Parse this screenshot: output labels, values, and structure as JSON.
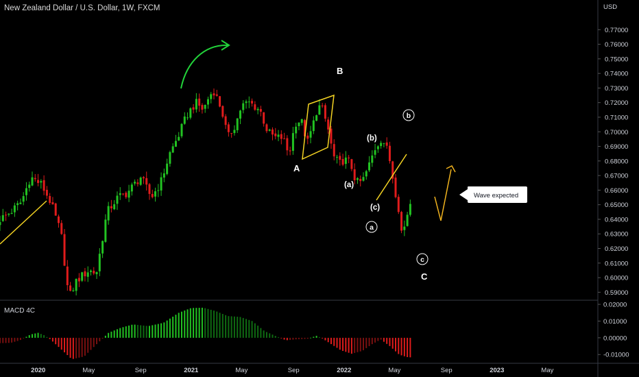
{
  "header": {
    "title": "New Zealand Dollar / U.S. Dollar, 1W, FXCM",
    "currency": "USD"
  },
  "colors": {
    "background": "#000000",
    "up": "#22c322",
    "down": "#e01c1c",
    "trendline": "#f5d423",
    "projection": "#f2b41e",
    "arrow": "#22d33a",
    "grid": "#1a1a1a",
    "separator": "#363a45"
  },
  "chart_data": [
    {
      "type": "candlestick",
      "title": "New Zealand Dollar / U.S. Dollar, 1W, FXCM",
      "ylabel": "USD",
      "ylim": [
        0.585,
        0.78
      ],
      "grid": false,
      "y_ticks": [
        "0.77000",
        "0.76000",
        "0.75000",
        "0.74000",
        "0.73000",
        "0.72000",
        "0.71000",
        "0.70000",
        "0.69000",
        "0.68000",
        "0.67000",
        "0.66000",
        "0.65000",
        "0.64000",
        "0.63000",
        "0.62000",
        "0.61000",
        "0.60000",
        "0.59000"
      ],
      "x_ticks": [
        {
          "label": "2020",
          "x": 2020.0
        },
        {
          "label": "May",
          "x": 2020.33
        },
        {
          "label": "Sep",
          "x": 2020.67
        },
        {
          "label": "2021",
          "x": 2021.0
        },
        {
          "label": "May",
          "x": 2021.33
        },
        {
          "label": "Sep",
          "x": 2021.67
        },
        {
          "label": "2022",
          "x": 2022.0
        },
        {
          "label": "May",
          "x": 2022.33
        },
        {
          "label": "Sep",
          "x": 2022.67
        },
        {
          "label": "2023",
          "x": 2023.0
        },
        {
          "label": "May",
          "x": 2023.33
        }
      ],
      "xlim": [
        2019.75,
        2023.66
      ],
      "keypoints": [
        {
          "x": 2019.75,
          "close": 0.64
        },
        {
          "x": 2019.82,
          "close": 0.645
        },
        {
          "x": 2019.89,
          "close": 0.652
        },
        {
          "x": 2019.95,
          "close": 0.669
        },
        {
          "x": 2020.02,
          "close": 0.664
        },
        {
          "x": 2020.08,
          "close": 0.652
        },
        {
          "x": 2020.15,
          "close": 0.63
        },
        {
          "x": 2020.2,
          "close": 0.586
        },
        {
          "x": 2020.25,
          "close": 0.598
        },
        {
          "x": 2020.33,
          "close": 0.605
        },
        {
          "x": 2020.38,
          "close": 0.603
        },
        {
          "x": 2020.45,
          "close": 0.645
        },
        {
          "x": 2020.52,
          "close": 0.655
        },
        {
          "x": 2020.58,
          "close": 0.658
        },
        {
          "x": 2020.67,
          "close": 0.669
        },
        {
          "x": 2020.74,
          "close": 0.655
        },
        {
          "x": 2020.8,
          "close": 0.665
        },
        {
          "x": 2020.86,
          "close": 0.685
        },
        {
          "x": 2020.92,
          "close": 0.698
        },
        {
          "x": 2020.97,
          "close": 0.711
        },
        {
          "x": 2021.03,
          "close": 0.72
        },
        {
          "x": 2021.08,
          "close": 0.715
        },
        {
          "x": 2021.12,
          "close": 0.725
        },
        {
          "x": 2021.15,
          "close": 0.728
        },
        {
          "x": 2021.2,
          "close": 0.715
        },
        {
          "x": 2021.24,
          "close": 0.696
        },
        {
          "x": 2021.29,
          "close": 0.705
        },
        {
          "x": 2021.33,
          "close": 0.718
        },
        {
          "x": 2021.38,
          "close": 0.72
        },
        {
          "x": 2021.45,
          "close": 0.715
        },
        {
          "x": 2021.5,
          "close": 0.7
        },
        {
          "x": 2021.55,
          "close": 0.696
        },
        {
          "x": 2021.6,
          "close": 0.696
        },
        {
          "x": 2021.64,
          "close": 0.684
        },
        {
          "x": 2021.68,
          "close": 0.706
        },
        {
          "x": 2021.72,
          "close": 0.708
        },
        {
          "x": 2021.76,
          "close": 0.692
        },
        {
          "x": 2021.8,
          "close": 0.706
        },
        {
          "x": 2021.83,
          "close": 0.718
        },
        {
          "x": 2021.86,
          "close": 0.715
        },
        {
          "x": 2021.9,
          "close": 0.7
        },
        {
          "x": 2021.93,
          "close": 0.683
        },
        {
          "x": 2021.97,
          "close": 0.678
        },
        {
          "x": 2022.0,
          "close": 0.681
        },
        {
          "x": 2022.04,
          "close": 0.679
        },
        {
          "x": 2022.08,
          "close": 0.665
        },
        {
          "x": 2022.12,
          "close": 0.666
        },
        {
          "x": 2022.16,
          "close": 0.676
        },
        {
          "x": 2022.2,
          "close": 0.688
        },
        {
          "x": 2022.24,
          "close": 0.695
        },
        {
          "x": 2022.27,
          "close": 0.692
        },
        {
          "x": 2022.3,
          "close": 0.68
        },
        {
          "x": 2022.33,
          "close": 0.662
        },
        {
          "x": 2022.36,
          "close": 0.646
        },
        {
          "x": 2022.38,
          "close": 0.628
        },
        {
          "x": 2022.41,
          "close": 0.642
        },
        {
          "x": 2022.43,
          "close": 0.652
        },
        {
          "x": 2022.45,
          "close": 0.649
        }
      ]
    },
    {
      "type": "bar",
      "title": "MACD 4C",
      "ylim": [
        -0.014,
        0.02
      ],
      "y_ticks": [
        "0.02000",
        "0.01000",
        "0.00000",
        "-0.01000"
      ],
      "xlim": [
        2019.75,
        2023.66
      ],
      "keypoints": [
        {
          "x": 2019.75,
          "value": -0.0032
        },
        {
          "x": 2019.82,
          "value": -0.003
        },
        {
          "x": 2019.88,
          "value": -0.0015
        },
        {
          "x": 2019.95,
          "value": 0.002
        },
        {
          "x": 2020.0,
          "value": 0.003
        },
        {
          "x": 2020.04,
          "value": 0.0015
        },
        {
          "x": 2020.08,
          "value": -0.001
        },
        {
          "x": 2020.14,
          "value": -0.006
        },
        {
          "x": 2020.22,
          "value": -0.0128
        },
        {
          "x": 2020.3,
          "value": -0.0112
        },
        {
          "x": 2020.38,
          "value": -0.004
        },
        {
          "x": 2020.46,
          "value": 0.003
        },
        {
          "x": 2020.54,
          "value": 0.006
        },
        {
          "x": 2020.62,
          "value": 0.008
        },
        {
          "x": 2020.72,
          "value": 0.007
        },
        {
          "x": 2020.82,
          "value": 0.009
        },
        {
          "x": 2020.92,
          "value": 0.015
        },
        {
          "x": 2021.0,
          "value": 0.0178
        },
        {
          "x": 2021.08,
          "value": 0.018
        },
        {
          "x": 2021.16,
          "value": 0.016
        },
        {
          "x": 2021.24,
          "value": 0.013
        },
        {
          "x": 2021.32,
          "value": 0.0125
        },
        {
          "x": 2021.4,
          "value": 0.01
        },
        {
          "x": 2021.48,
          "value": 0.004
        },
        {
          "x": 2021.56,
          "value": 0.0008
        },
        {
          "x": 2021.62,
          "value": -0.0015
        },
        {
          "x": 2021.7,
          "value": -0.0008
        },
        {
          "x": 2021.76,
          "value": -0.0006
        },
        {
          "x": 2021.82,
          "value": 0.0012
        },
        {
          "x": 2021.86,
          "value": -0.0005
        },
        {
          "x": 2021.92,
          "value": -0.004
        },
        {
          "x": 2021.98,
          "value": -0.0075
        },
        {
          "x": 2022.05,
          "value": -0.0095
        },
        {
          "x": 2022.12,
          "value": -0.0078
        },
        {
          "x": 2022.18,
          "value": -0.004
        },
        {
          "x": 2022.24,
          "value": -0.001
        },
        {
          "x": 2022.3,
          "value": -0.005
        },
        {
          "x": 2022.36,
          "value": -0.01
        },
        {
          "x": 2022.41,
          "value": -0.0115
        },
        {
          "x": 2022.45,
          "value": -0.0118
        }
      ]
    }
  ],
  "annotations": {
    "wave_A": "A",
    "wave_B": "B",
    "wave_C": "C",
    "sub_a_paren": "(a)",
    "sub_b_paren": "(b)",
    "sub_c_paren": "(c)",
    "circ_a": "a",
    "circ_b": "b",
    "circ_c": "c",
    "callout": "Wave expected"
  }
}
